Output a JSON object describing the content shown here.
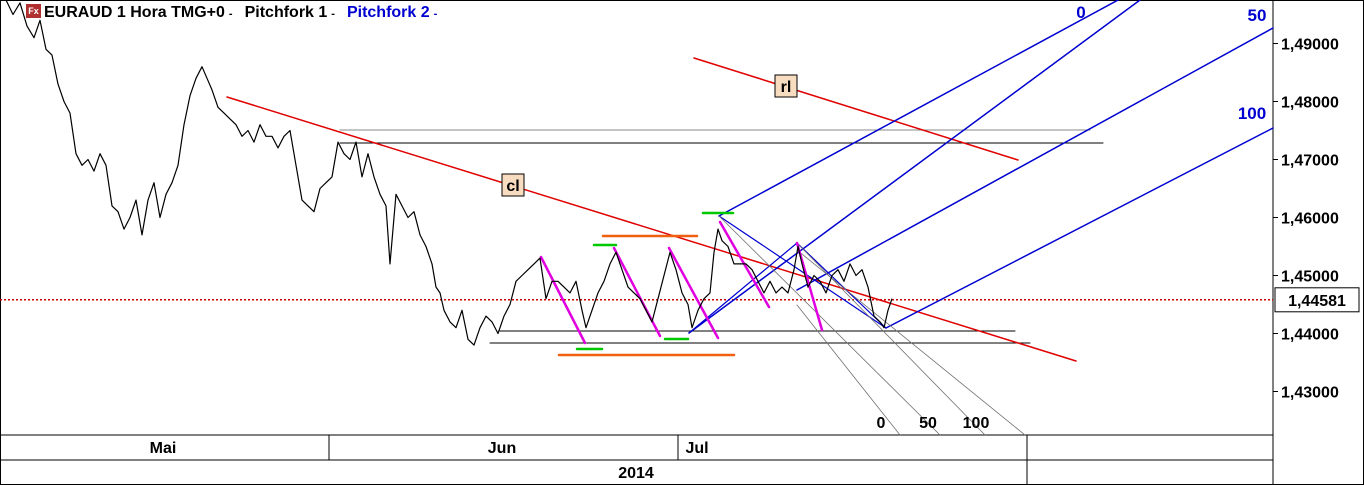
{
  "header": {
    "icon_label": "Fx",
    "symbol": "EURAUD 1 Hora TMG+0",
    "study1": "Pitchfork 1",
    "study2": "Pitchfork 2",
    "arrow": "-"
  },
  "chart_data": {
    "type": "line",
    "title": "EURAUD 1 Hora TMG+0",
    "xlabel": "2014",
    "ylabel": "",
    "ylim": [
      1.4225,
      1.4975
    ],
    "y_ticks": [
      "1,49000",
      "1,48000",
      "1,47000",
      "1,46000",
      "1,45000",
      "1,44000",
      "1,43000"
    ],
    "y_tick_values": [
      1.49,
      1.48,
      1.47,
      1.46,
      1.45,
      1.44,
      1.43
    ],
    "x_month_labels": [
      "Mai",
      "Jun",
      "Jul"
    ],
    "x_year_label": "2014",
    "last_price": 1.44581,
    "last_price_label": "1,44581",
    "price_path": [
      [
        0,
        1.4978
      ],
      [
        6,
        1.4975
      ],
      [
        13,
        1.495
      ],
      [
        20,
        1.497
      ],
      [
        27,
        1.493
      ],
      [
        34,
        1.491
      ],
      [
        40,
        1.494
      ],
      [
        46,
        1.489
      ],
      [
        52,
        1.488
      ],
      [
        58,
        1.483
      ],
      [
        64,
        1.48
      ],
      [
        70,
        1.478
      ],
      [
        76,
        1.471
      ],
      [
        82,
        1.469
      ],
      [
        88,
        1.47
      ],
      [
        94,
        1.468
      ],
      [
        100,
        1.471
      ],
      [
        106,
        1.469
      ],
      [
        112,
        1.462
      ],
      [
        118,
        1.461
      ],
      [
        124,
        1.458
      ],
      [
        130,
        1.46
      ],
      [
        136,
        1.463
      ],
      [
        142,
        1.457
      ],
      [
        148,
        1.463
      ],
      [
        154,
        1.466
      ],
      [
        160,
        1.46
      ],
      [
        166,
        1.464
      ],
      [
        172,
        1.466
      ],
      [
        178,
        1.469
      ],
      [
        184,
        1.476
      ],
      [
        190,
        1.481
      ],
      [
        196,
        1.484
      ],
      [
        202,
        1.486
      ],
      [
        207,
        1.484
      ],
      [
        212,
        1.482
      ],
      [
        218,
        1.479
      ],
      [
        224,
        1.478
      ],
      [
        230,
        1.477
      ],
      [
        236,
        1.476
      ],
      [
        242,
        1.474
      ],
      [
        248,
        1.475
      ],
      [
        254,
        1.473
      ],
      [
        260,
        1.476
      ],
      [
        266,
        1.474
      ],
      [
        272,
        1.474
      ],
      [
        278,
        1.472
      ],
      [
        284,
        1.474
      ],
      [
        290,
        1.475
      ],
      [
        296,
        1.469
      ],
      [
        302,
        1.463
      ],
      [
        308,
        1.462
      ],
      [
        314,
        1.461
      ],
      [
        320,
        1.465
      ],
      [
        326,
        1.466
      ],
      [
        332,
        1.467
      ],
      [
        338,
        1.473
      ],
      [
        344,
        1.471
      ],
      [
        350,
        1.47
      ],
      [
        356,
        1.473
      ],
      [
        362,
        1.467
      ],
      [
        368,
        1.471
      ],
      [
        374,
        1.467
      ],
      [
        380,
        1.464
      ],
      [
        386,
        1.462
      ],
      [
        390,
        1.452
      ],
      [
        396,
        1.464
      ],
      [
        402,
        1.462
      ],
      [
        408,
        1.46
      ],
      [
        414,
        1.461
      ],
      [
        420,
        1.457
      ],
      [
        426,
        1.455
      ],
      [
        432,
        1.452
      ],
      [
        436,
        1.448
      ],
      [
        440,
        1.447
      ],
      [
        444,
        1.444
      ],
      [
        450,
        1.442
      ],
      [
        456,
        1.441
      ],
      [
        462,
        1.444
      ],
      [
        468,
        1.439
      ],
      [
        474,
        1.438
      ],
      [
        480,
        1.441
      ],
      [
        486,
        1.443
      ],
      [
        492,
        1.442
      ],
      [
        498,
        1.44
      ],
      [
        504,
        1.443
      ],
      [
        510,
        1.445
      ],
      [
        516,
        1.449
      ],
      [
        522,
        1.45
      ],
      [
        528,
        1.451
      ],
      [
        534,
        1.452
      ],
      [
        540,
        1.453
      ],
      [
        546,
        1.446
      ],
      [
        552,
        1.449
      ],
      [
        558,
        1.449
      ],
      [
        564,
        1.448
      ],
      [
        570,
        1.447
      ],
      [
        576,
        1.449
      ],
      [
        582,
        1.444
      ],
      [
        586,
        1.441
      ],
      [
        592,
        1.444
      ],
      [
        598,
        1.447
      ],
      [
        604,
        1.449
      ],
      [
        610,
        1.452
      ],
      [
        616,
        1.454
      ],
      [
        622,
        1.451
      ],
      [
        628,
        1.448
      ],
      [
        634,
        1.447
      ],
      [
        640,
        1.446
      ],
      [
        646,
        1.444
      ],
      [
        652,
        1.442
      ],
      [
        658,
        1.446
      ],
      [
        664,
        1.45
      ],
      [
        670,
        1.454
      ],
      [
        676,
        1.451
      ],
      [
        682,
        1.447
      ],
      [
        688,
        1.445
      ],
      [
        692,
        1.441
      ],
      [
        698,
        1.444
      ],
      [
        704,
        1.446
      ],
      [
        710,
        1.447
      ],
      [
        714,
        1.454
      ],
      [
        718,
        1.458
      ],
      [
        722,
        1.456
      ],
      [
        728,
        1.455
      ],
      [
        734,
        1.452
      ],
      [
        740,
        1.452
      ],
      [
        746,
        1.452
      ],
      [
        752,
        1.451
      ],
      [
        758,
        1.449
      ],
      [
        764,
        1.447
      ],
      [
        770,
        1.449
      ],
      [
        776,
        1.447
      ],
      [
        782,
        1.448
      ],
      [
        788,
        1.447
      ],
      [
        794,
        1.451
      ],
      [
        798,
        1.455
      ],
      [
        802,
        1.452
      ],
      [
        808,
        1.448
      ],
      [
        814,
        1.45
      ],
      [
        820,
        1.449
      ],
      [
        826,
        1.447
      ],
      [
        832,
        1.45
      ],
      [
        838,
        1.451
      ],
      [
        844,
        1.449
      ],
      [
        850,
        1.452
      ],
      [
        856,
        1.45
      ],
      [
        862,
        1.451
      ],
      [
        868,
        1.448
      ],
      [
        874,
        1.443
      ],
      [
        880,
        1.442
      ],
      [
        884,
        1.441
      ],
      [
        888,
        1.444
      ],
      [
        892,
        1.446
      ]
    ]
  },
  "annotations": {
    "cl_label": "cl",
    "rl_label": "rl",
    "fork_top_labels": [
      "0",
      "50",
      "100"
    ],
    "fork_bottom_labels": [
      "0",
      "50",
      "100"
    ]
  },
  "colors": {
    "price": "#000000",
    "cl_line": "#e00000",
    "fork_blue": "#0000d0",
    "fork_grey": "#707070",
    "magenta": "#e000e0",
    "orange": "#f06010",
    "green": "#00c800",
    "last_price_line": "#cc0000",
    "label_box": "#f7dcc0"
  }
}
